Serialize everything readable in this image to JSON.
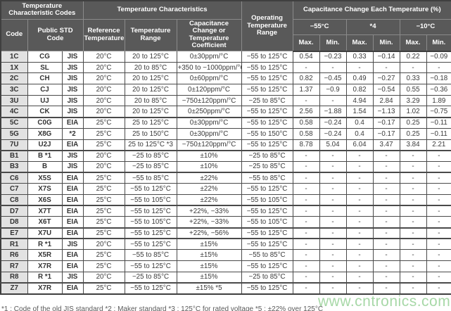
{
  "table": {
    "header": {
      "group_codes": "Temperature Characteristic Codes",
      "group_characteristics": "Temperature Characteristics",
      "group_cap_change": "Capacitance Change Each Temperature (%)",
      "col_code": "Code",
      "col_public_std": "Public STD Code",
      "col_ref_temp": "Reference Temperature",
      "col_temp_range": "Temperature Range",
      "col_coeff": "Capacitance Change or Temperature Coefficient",
      "col_operating": "Operating Temperature Range",
      "temp_group_1": "−55°C",
      "temp_group_2": "*4",
      "temp_group_3": "−10°C",
      "max_label": "Max.",
      "min_label": "Min."
    },
    "rows": [
      {
        "code": "1C",
        "std": "CG",
        "org": "JIS",
        "ref": "20°C",
        "range": "20 to 125°C",
        "coeff": "0±30ppm/°C",
        "op": "−55 to 125°C",
        "vals": [
          "0.54",
          "−0.23",
          "0.33",
          "−0.14",
          "0.22",
          "−0.09"
        ],
        "group_end": false
      },
      {
        "code": "1X",
        "std": "SL",
        "org": "JIS",
        "ref": "20°C",
        "range": "20 to 85°C",
        "coeff": "+350 to −1000ppm/°C",
        "op": "−55 to 125°C",
        "vals": [
          "-",
          "-",
          "-",
          "-",
          "-",
          "-"
        ],
        "group_end": false
      },
      {
        "code": "2C",
        "std": "CH",
        "org": "JIS",
        "ref": "20°C",
        "range": "20 to 125°C",
        "coeff": "0±60ppm/°C",
        "op": "−55 to 125°C",
        "vals": [
          "0.82",
          "−0.45",
          "0.49",
          "−0.27",
          "0.33",
          "−0.18"
        ],
        "group_end": false
      },
      {
        "code": "3C",
        "std": "CJ",
        "org": "JIS",
        "ref": "20°C",
        "range": "20 to 125°C",
        "coeff": "0±120ppm/°C",
        "op": "−55 to 125°C",
        "vals": [
          "1.37",
          "−0.9",
          "0.82",
          "−0.54",
          "0.55",
          "−0.36"
        ],
        "group_end": false
      },
      {
        "code": "3U",
        "std": "UJ",
        "org": "JIS",
        "ref": "20°C",
        "range": "20 to 85°C",
        "coeff": "−750±120ppm/°C",
        "op": "−25 to 85°C",
        "vals": [
          "-",
          "-",
          "4.94",
          "2.84",
          "3.29",
          "1.89"
        ],
        "group_end": false
      },
      {
        "code": "4C",
        "std": "CK",
        "org": "JIS",
        "ref": "20°C",
        "range": "20 to 125°C",
        "coeff": "0±250ppm/°C",
        "op": "−55 to 125°C",
        "vals": [
          "2.56",
          "−1.88",
          "1.54",
          "−1.13",
          "1.02",
          "−0.75"
        ],
        "group_end": true
      },
      {
        "code": "5C",
        "std": "C0G",
        "org": "EIA",
        "ref": "25°C",
        "range": "25 to 125°C",
        "coeff": "0±30ppm/°C",
        "op": "−55 to 125°C",
        "vals": [
          "0.58",
          "−0.24",
          "0.4",
          "−0.17",
          "0.25",
          "−0.11"
        ],
        "group_end": false
      },
      {
        "code": "5G",
        "std": "X8G",
        "org": "*2",
        "ref": "25°C",
        "range": "25 to 150°C",
        "coeff": "0±30ppm/°C",
        "op": "−55 to 150°C",
        "vals": [
          "0.58",
          "−0.24",
          "0.4",
          "−0.17",
          "0.25",
          "−0.11"
        ],
        "group_end": false
      },
      {
        "code": "7U",
        "std": "U2J",
        "org": "EIA",
        "ref": "25°C",
        "range": "25 to 125°C *3",
        "coeff": "−750±120ppm/°C",
        "op": "−55 to 125°C",
        "vals": [
          "8.78",
          "5.04",
          "6.04",
          "3.47",
          "3.84",
          "2.21"
        ],
        "group_end": true
      },
      {
        "code": "B1",
        "std": "B *1",
        "org": "JIS",
        "ref": "20°C",
        "range": "−25 to 85°C",
        "coeff": "±10%",
        "op": "−25 to 85°C",
        "vals": [
          "-",
          "-",
          "-",
          "-",
          "-",
          "-"
        ],
        "group_end": false
      },
      {
        "code": "B3",
        "std": "B",
        "org": "JIS",
        "ref": "20°C",
        "range": "−25 to 85°C",
        "coeff": "±10%",
        "op": "−25 to 85°C",
        "vals": [
          "-",
          "-",
          "-",
          "-",
          "-",
          "-"
        ],
        "group_end": true
      },
      {
        "code": "C6",
        "std": "X5S",
        "org": "EIA",
        "ref": "25°C",
        "range": "−55 to 85°C",
        "coeff": "±22%",
        "op": "−55 to 85°C",
        "vals": [
          "-",
          "-",
          "-",
          "-",
          "-",
          "-"
        ],
        "group_end": false
      },
      {
        "code": "C7",
        "std": "X7S",
        "org": "EIA",
        "ref": "25°C",
        "range": "−55 to 125°C",
        "coeff": "±22%",
        "op": "−55 to 125°C",
        "vals": [
          "-",
          "-",
          "-",
          "-",
          "-",
          "-"
        ],
        "group_end": false
      },
      {
        "code": "C8",
        "std": "X6S",
        "org": "EIA",
        "ref": "25°C",
        "range": "−55 to 105°C",
        "coeff": "±22%",
        "op": "−55 to 105°C",
        "vals": [
          "-",
          "-",
          "-",
          "-",
          "-",
          "-"
        ],
        "group_end": true
      },
      {
        "code": "D7",
        "std": "X7T",
        "org": "EIA",
        "ref": "25°C",
        "range": "−55 to 125°C",
        "coeff": "+22%, −33%",
        "op": "−55 to 125°C",
        "vals": [
          "-",
          "-",
          "-",
          "-",
          "-",
          "-"
        ],
        "group_end": false
      },
      {
        "code": "D8",
        "std": "X6T",
        "org": "EIA",
        "ref": "25°C",
        "range": "−55 to 105°C",
        "coeff": "+22%, −33%",
        "op": "−55 to 105°C",
        "vals": [
          "-",
          "-",
          "-",
          "-",
          "-",
          "-"
        ],
        "group_end": true
      },
      {
        "code": "E7",
        "std": "X7U",
        "org": "EIA",
        "ref": "25°C",
        "range": "−55 to 125°C",
        "coeff": "+22%, −56%",
        "op": "−55 to 125°C",
        "vals": [
          "-",
          "-",
          "-",
          "-",
          "-",
          "-"
        ],
        "group_end": true
      },
      {
        "code": "R1",
        "std": "R *1",
        "org": "JIS",
        "ref": "20°C",
        "range": "−55 to 125°C",
        "coeff": "±15%",
        "op": "−55 to 125°C",
        "vals": [
          "-",
          "-",
          "-",
          "-",
          "-",
          "-"
        ],
        "group_end": false
      },
      {
        "code": "R6",
        "std": "X5R",
        "org": "EIA",
        "ref": "25°C",
        "range": "−55 to 85°C",
        "coeff": "±15%",
        "op": "−55 to 85°C",
        "vals": [
          "-",
          "-",
          "-",
          "-",
          "-",
          "-"
        ],
        "group_end": false
      },
      {
        "code": "R7",
        "std": "X7R",
        "org": "EIA",
        "ref": "25°C",
        "range": "−55 to 125°C",
        "coeff": "±15%",
        "op": "−55 to 125°C",
        "vals": [
          "-",
          "-",
          "-",
          "-",
          "-",
          "-"
        ],
        "group_end": false
      },
      {
        "code": "R8",
        "std": "R *1",
        "org": "JIS",
        "ref": "20°C",
        "range": "−25 to 85°C",
        "coeff": "±15%",
        "op": "−25 to 85°C",
        "vals": [
          "-",
          "-",
          "-",
          "-",
          "-",
          "-"
        ],
        "group_end": true
      },
      {
        "code": "Z7",
        "std": "X7R",
        "org": "EIA",
        "ref": "25°C",
        "range": "−55 to 125°C",
        "coeff": "±15% *5",
        "op": "−55 to 125°C",
        "vals": [
          "-",
          "-",
          "-",
          "-",
          "-",
          "-"
        ],
        "group_end": false
      }
    ]
  },
  "watermark": "www.cntronics.com",
  "footnote_clipped": "*1 : Code of the old JIS standard  *2 : Maker standard  *3 : 125°C for rated voltage  *5 : ±22% over 125°C",
  "colors": {
    "header_bg": "#595959",
    "header_text": "#ffffff",
    "code_col_bg": "#e2e2e2",
    "grid_line": "#4a4a4a",
    "watermark_green": "#9ed49e"
  }
}
